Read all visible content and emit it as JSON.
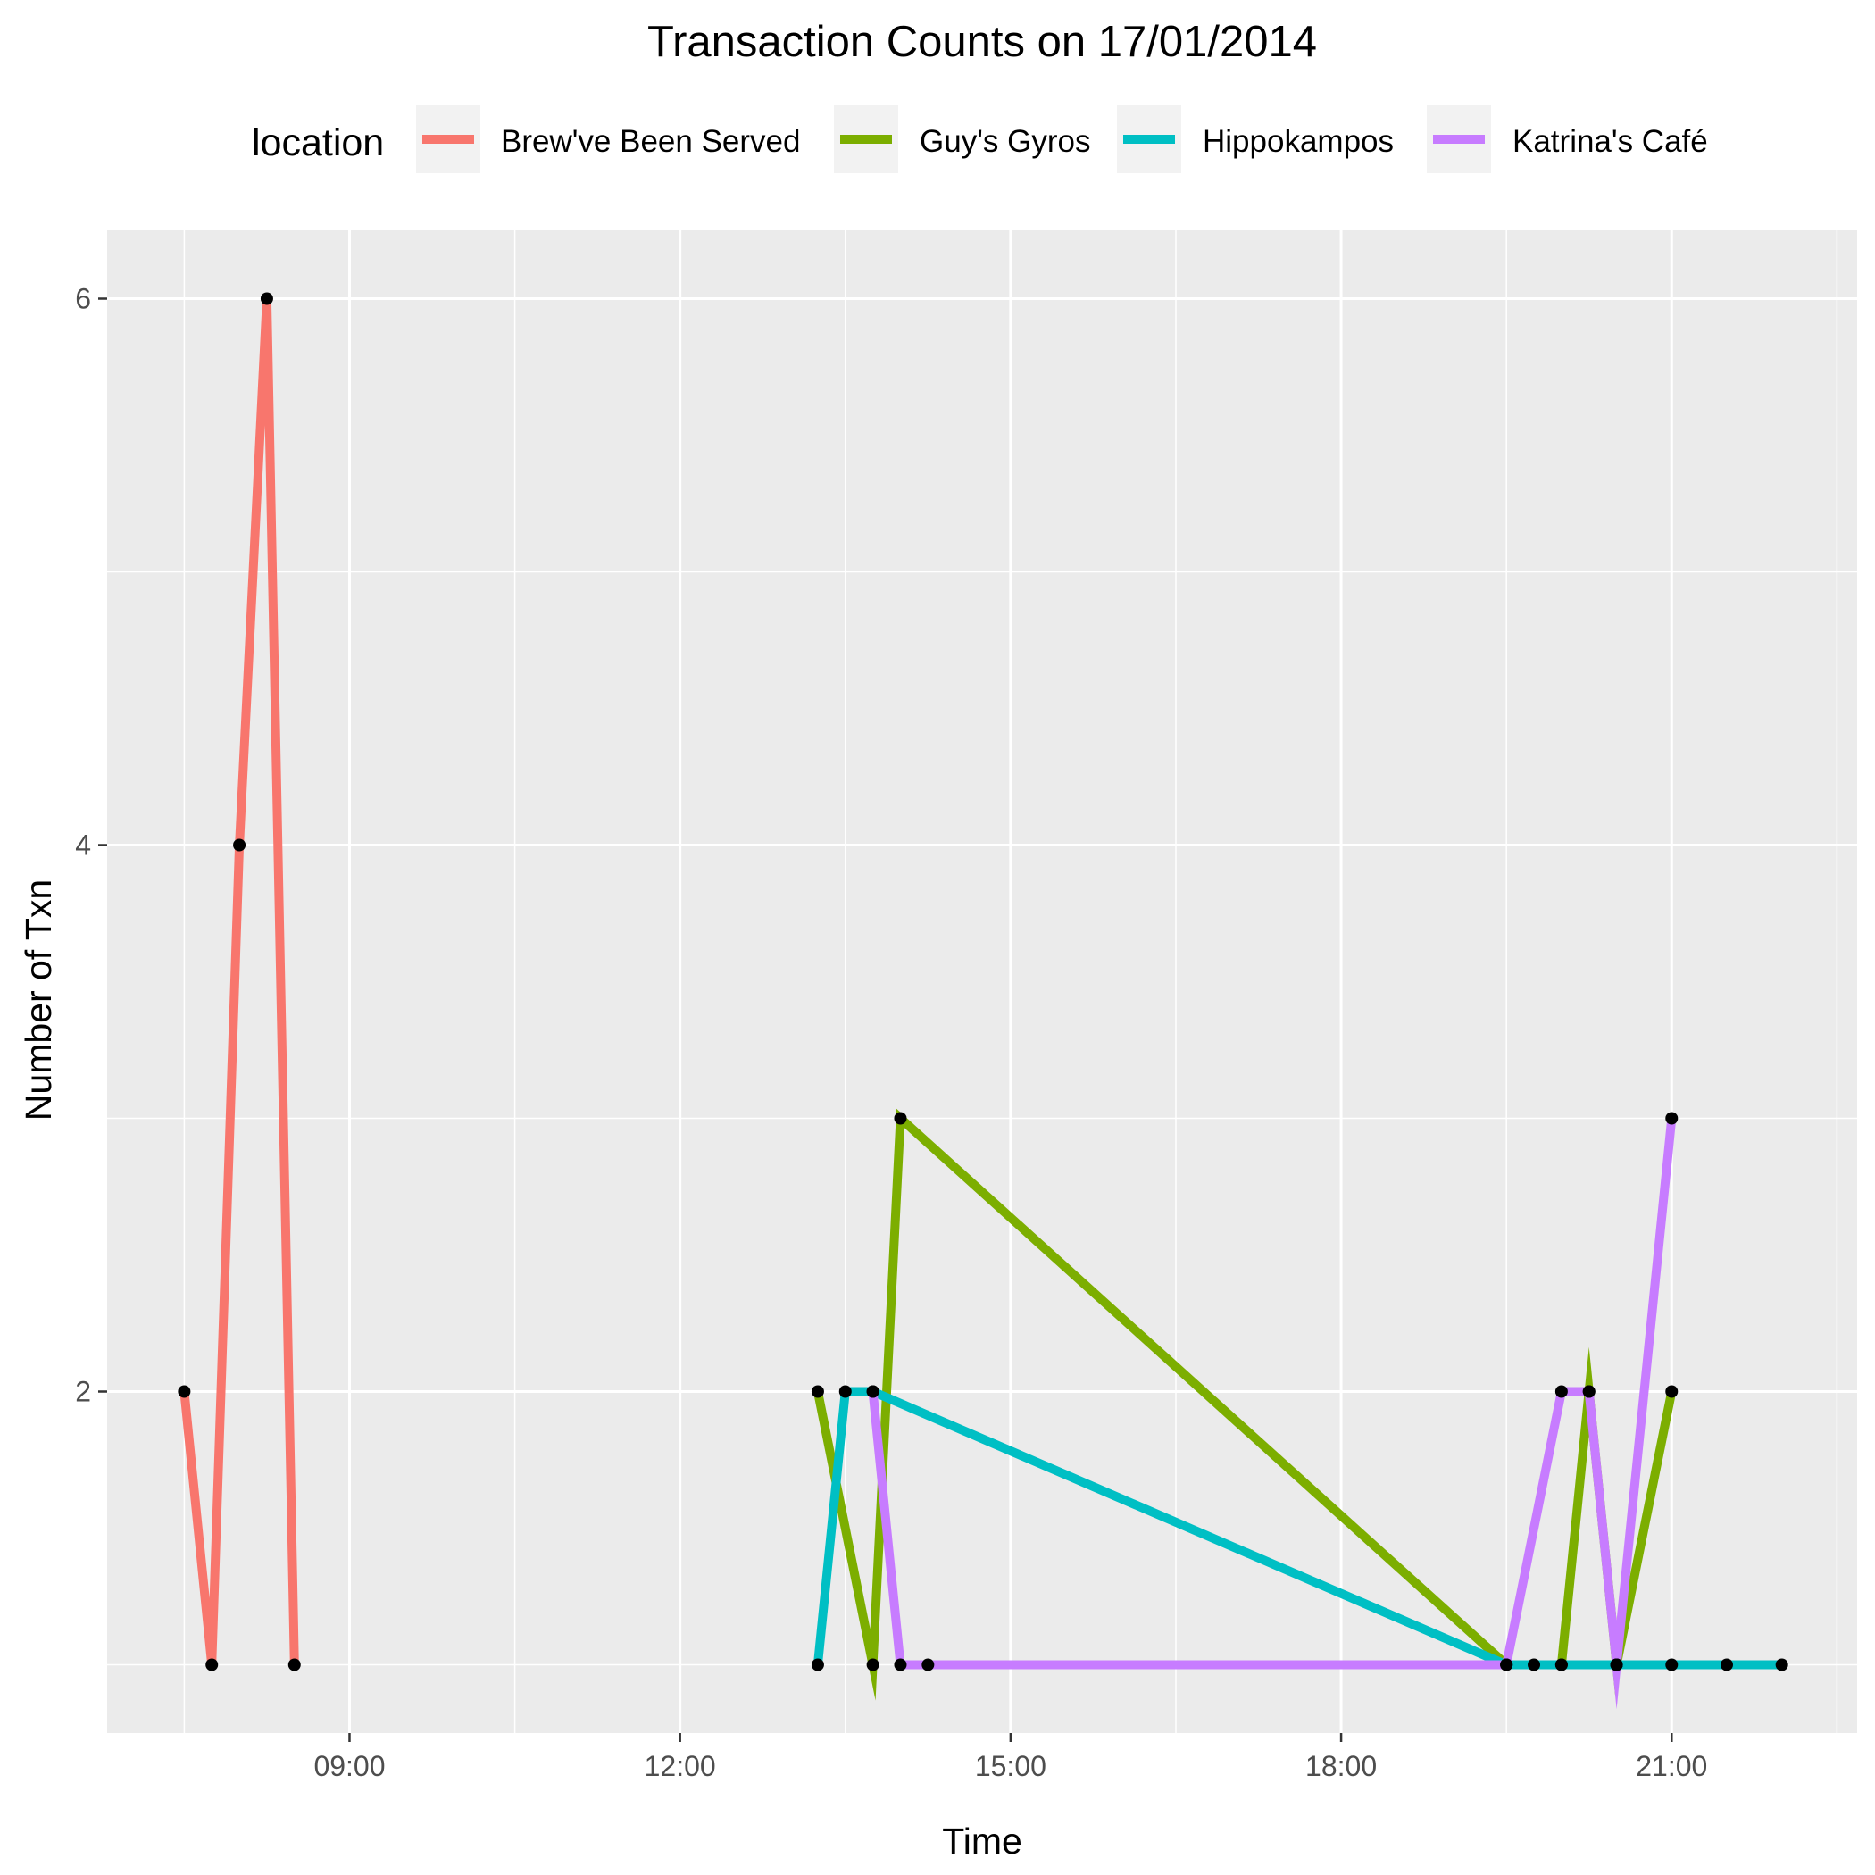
{
  "chart_data": {
    "type": "line",
    "title": "Transaction Counts on 17/01/2014",
    "xlabel": "Time",
    "ylabel": "Number of Txn",
    "legend_title": "location",
    "legend_position": "top",
    "grid": true,
    "x_unit": "time of day (HH:MM)",
    "xlim": [
      "06:48",
      "22:41"
    ],
    "ylim": [
      0.75,
      6.25
    ],
    "x_ticks": [
      "09:00",
      "12:00",
      "15:00",
      "18:00",
      "21:00"
    ],
    "y_ticks": [
      2,
      4,
      6
    ],
    "series": [
      {
        "name": "Brew've Been Served",
        "color": "#F8766D",
        "points": [
          [
            "07:30",
            2
          ],
          [
            "07:45",
            1
          ],
          [
            "08:00",
            4
          ],
          [
            "08:15",
            6
          ],
          [
            "08:30",
            1
          ]
        ]
      },
      {
        "name": "Guy's Gyros",
        "color": "#7CAE00",
        "points": [
          [
            "13:15",
            2
          ],
          [
            "13:45",
            1
          ],
          [
            "14:00",
            3
          ],
          [
            "19:30",
            1
          ],
          [
            "20:00",
            1
          ],
          [
            "20:15",
            2
          ],
          [
            "20:30",
            1
          ],
          [
            "21:00",
            2
          ]
        ]
      },
      {
        "name": "Hippokampos",
        "color": "#00BFC4",
        "points": [
          [
            "13:15",
            1
          ],
          [
            "13:30",
            2
          ],
          [
            "13:45",
            2
          ],
          [
            "19:30",
            1
          ],
          [
            "19:45",
            1
          ],
          [
            "20:00",
            1
          ],
          [
            "20:30",
            1
          ],
          [
            "21:00",
            1
          ],
          [
            "21:30",
            1
          ],
          [
            "22:00",
            1
          ]
        ]
      },
      {
        "name": "Katrina's Café",
        "color": "#C77CFF",
        "points": [
          [
            "13:45",
            2
          ],
          [
            "14:00",
            1
          ],
          [
            "14:15",
            1
          ],
          [
            "19:30",
            1
          ],
          [
            "20:00",
            2
          ],
          [
            "20:15",
            2
          ],
          [
            "20:30",
            1
          ],
          [
            "21:00",
            3
          ]
        ]
      }
    ]
  }
}
